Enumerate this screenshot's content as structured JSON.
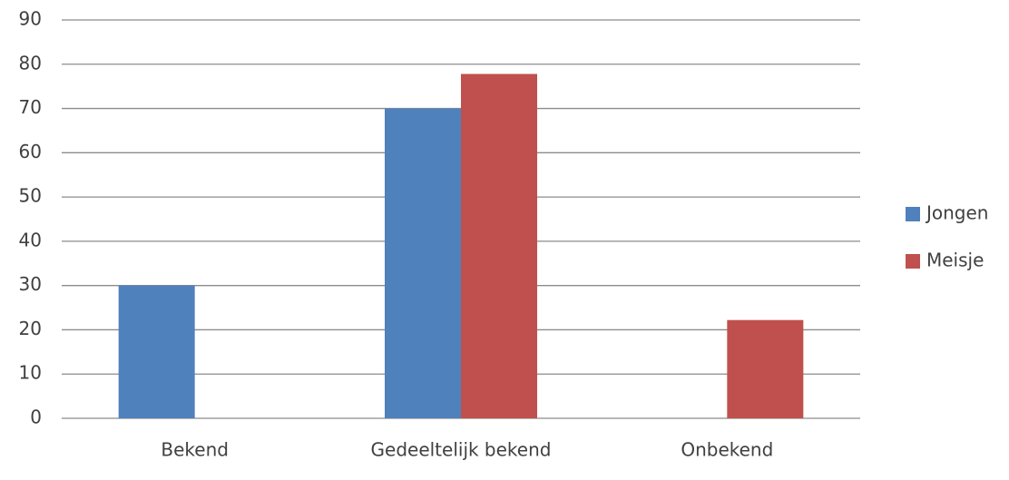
{
  "chart_data": {
    "type": "bar",
    "categories": [
      "Bekend",
      "Gedeeltelijk bekend",
      "Onbekend"
    ],
    "series": [
      {
        "name": "Jongen",
        "color": "#4f81bd",
        "values": [
          30,
          70,
          0
        ]
      },
      {
        "name": "Meisje",
        "color": "#c0504d",
        "values": [
          0,
          77.8,
          22.2
        ]
      }
    ],
    "ylim": [
      0,
      90
    ],
    "yticks": [
      0,
      10,
      20,
      30,
      40,
      50,
      60,
      70,
      80,
      90
    ],
    "grid": true,
    "legend": "right"
  }
}
